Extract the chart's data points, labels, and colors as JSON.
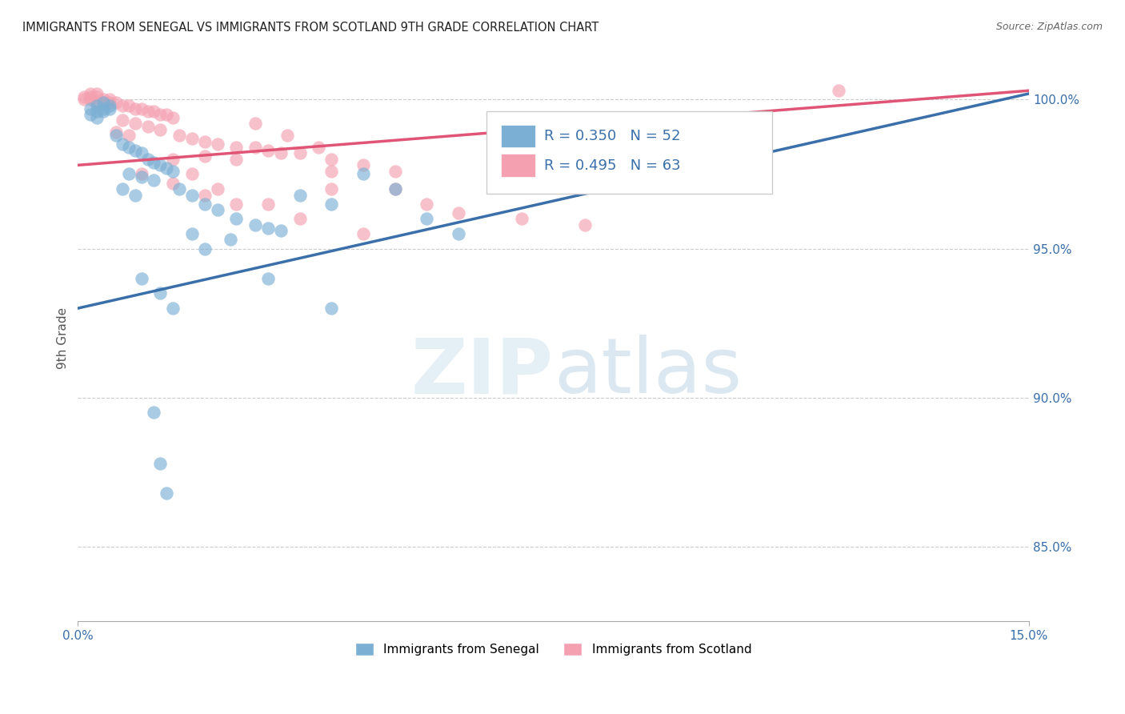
{
  "title": "IMMIGRANTS FROM SENEGAL VS IMMIGRANTS FROM SCOTLAND 9TH GRADE CORRELATION CHART",
  "source": "Source: ZipAtlas.com",
  "ylabel": "9th Grade",
  "ylabel_right_ticks": [
    "100.0%",
    "95.0%",
    "90.0%",
    "85.0%"
  ],
  "ylabel_right_vals": [
    1.0,
    0.95,
    0.9,
    0.85
  ],
  "xmin": 0.0,
  "xmax": 0.15,
  "ymin": 0.825,
  "ymax": 1.015,
  "senegal_R": 0.35,
  "senegal_N": 52,
  "scotland_R": 0.495,
  "scotland_N": 63,
  "senegal_color": "#7bafd4",
  "scotland_color": "#f4a0b0",
  "senegal_line_color": "#3a6faa",
  "scotland_line_color": "#e05575",
  "grid_color": "#cccccc",
  "senegal_line_x0": 0.0,
  "senegal_line_y0": 0.93,
  "senegal_line_x1": 0.15,
  "senegal_line_y1": 1.002,
  "scotland_line_x0": 0.0,
  "scotland_line_y0": 0.978,
  "scotland_line_x1": 0.15,
  "scotland_line_y1": 1.003
}
